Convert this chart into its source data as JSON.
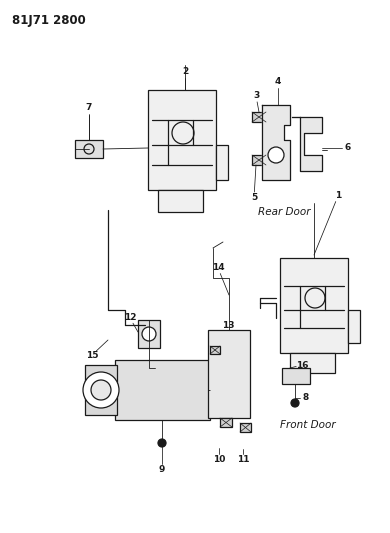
{
  "title": "81J71 2800",
  "bg": "#ffffff",
  "lc": "#1a1a1a",
  "rear_door_label": "Rear Door",
  "front_door_label": "Front Door",
  "figsize": [
    3.9,
    5.33
  ],
  "dpi": 100
}
